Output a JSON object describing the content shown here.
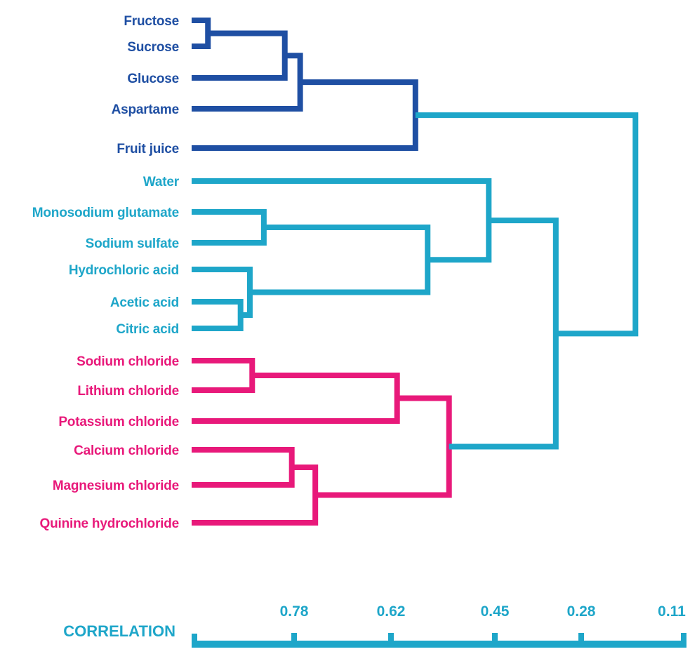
{
  "colors": {
    "sweet": "#1f4fa3",
    "sour_bitter_misc": "#1ea6c9",
    "salty": "#e8197a"
  },
  "leaves": [
    {
      "id": "fructose",
      "label": "Fructose",
      "color": "sweet"
    },
    {
      "id": "sucrose",
      "label": "Sucrose",
      "color": "sweet"
    },
    {
      "id": "glucose",
      "label": "Glucose",
      "color": "sweet"
    },
    {
      "id": "aspartame",
      "label": "Aspartame",
      "color": "sweet"
    },
    {
      "id": "fruit_juice",
      "label": "Fruit juice",
      "color": "sweet"
    },
    {
      "id": "water",
      "label": "Water",
      "color": "sour_bitter_misc"
    },
    {
      "id": "msg",
      "label": "Monosodium glutamate",
      "color": "sour_bitter_misc"
    },
    {
      "id": "sodium_sulfate",
      "label": "Sodium sulfate",
      "color": "sour_bitter_misc"
    },
    {
      "id": "hcl",
      "label": "Hydrochloric acid",
      "color": "sour_bitter_misc"
    },
    {
      "id": "acetic",
      "label": "Acetic acid",
      "color": "sour_bitter_misc"
    },
    {
      "id": "citric",
      "label": "Citric acid",
      "color": "sour_bitter_misc"
    },
    {
      "id": "nacl",
      "label": "Sodium chloride",
      "color": "salty"
    },
    {
      "id": "licl",
      "label": "Lithium chloride",
      "color": "salty"
    },
    {
      "id": "kcl",
      "label": "Potassium chloride",
      "color": "salty"
    },
    {
      "id": "cacl2",
      "label": "Calcium chloride",
      "color": "salty"
    },
    {
      "id": "mgcl2",
      "label": "Magnesium chloride",
      "color": "salty"
    },
    {
      "id": "quinine",
      "label": "Quinine hydrochloride",
      "color": "salty"
    }
  ],
  "merges": [
    {
      "id": "m1",
      "children": [
        "fructose",
        "sucrose"
      ],
      "correlation": 0.965,
      "color": "sweet"
    },
    {
      "id": "m2",
      "children": [
        "m1",
        "glucose"
      ],
      "correlation": 0.8,
      "color": "sweet"
    },
    {
      "id": "m3",
      "children": [
        "m2",
        "aspartame"
      ],
      "correlation": 0.77,
      "color": "sweet"
    },
    {
      "id": "m4",
      "children": [
        "m3",
        "fruit_juice"
      ],
      "correlation": 0.58,
      "color": "sweet"
    },
    {
      "id": "m5",
      "children": [
        "acetic",
        "citric"
      ],
      "correlation": 0.895,
      "color": "sour_bitter_misc"
    },
    {
      "id": "m6",
      "children": [
        "hcl",
        "m5"
      ],
      "correlation": 0.875,
      "color": "sour_bitter_misc"
    },
    {
      "id": "m7",
      "children": [
        "msg",
        "sodium_sulfate"
      ],
      "correlation": 0.845,
      "color": "sour_bitter_misc"
    },
    {
      "id": "m8",
      "children": [
        "m7",
        "m6"
      ],
      "correlation": 0.56,
      "color": "sour_bitter_misc"
    },
    {
      "id": "m9",
      "children": [
        "water",
        "m8"
      ],
      "correlation": 0.46,
      "color": "sour_bitter_misc"
    },
    {
      "id": "m10",
      "children": [
        "nacl",
        "licl"
      ],
      "correlation": 0.87,
      "color": "salty"
    },
    {
      "id": "m11",
      "children": [
        "m10",
        "kcl"
      ],
      "correlation": 0.61,
      "color": "salty"
    },
    {
      "id": "m12",
      "children": [
        "cacl2",
        "mgcl2"
      ],
      "correlation": 0.785,
      "color": "salty"
    },
    {
      "id": "m13",
      "children": [
        "m12",
        "quinine"
      ],
      "correlation": 0.745,
      "color": "salty"
    },
    {
      "id": "m14",
      "children": [
        "m11",
        "m13"
      ],
      "correlation": 0.525,
      "color": "salty"
    },
    {
      "id": "m15",
      "children": [
        "m9",
        "m14"
      ],
      "correlation": 0.33,
      "color": "sour_bitter_misc"
    },
    {
      "id": "m16",
      "children": [
        "m4",
        "m15"
      ],
      "correlation": 0.19,
      "color": "sour_bitter_misc"
    }
  ],
  "axis": {
    "title": "CORRELATION",
    "ticks": [
      {
        "label": "0.78",
        "value": 0.78
      },
      {
        "label": "0.62",
        "value": 0.62
      },
      {
        "label": "0.45",
        "value": 0.45
      },
      {
        "label": "0.28",
        "value": 0.28
      },
      {
        "label": "0.11",
        "value": 0.11
      }
    ],
    "color": "sour_bitter_misc"
  }
}
